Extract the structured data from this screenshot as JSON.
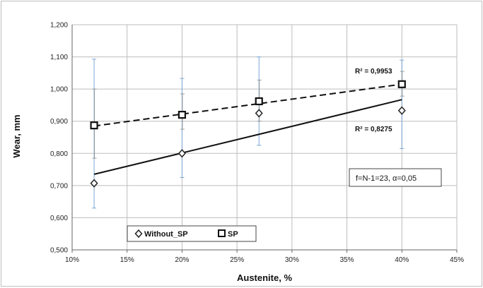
{
  "chart_data": {
    "type": "scatter",
    "xlabel": "Austenite, %",
    "ylabel": "Wear, mm",
    "xlim": [
      0.1,
      0.45
    ],
    "ylim": [
      0.5,
      1.2
    ],
    "x_ticks": [
      "10%",
      "15%",
      "20%",
      "25%",
      "30%",
      "35%",
      "40%",
      "45%"
    ],
    "x_tick_values": [
      0.1,
      0.15,
      0.2,
      0.25,
      0.3,
      0.35,
      0.4,
      0.45
    ],
    "y_ticks": [
      "0,500",
      "0,600",
      "0,700",
      "0,800",
      "0,900",
      "1,000",
      "1,100",
      "1,200"
    ],
    "y_tick_values": [
      0.5,
      0.6,
      0.7,
      0.8,
      0.9,
      1.0,
      1.1,
      1.2
    ],
    "grid": true,
    "legend_position": "bottom-left",
    "series": [
      {
        "name": "Without_SP",
        "marker": "diamond",
        "x": [
          0.12,
          0.2,
          0.27,
          0.4
        ],
        "y": [
          0.707,
          0.8,
          0.925,
          0.933
        ],
        "error_high": [
          1.093,
          1.033,
          1.1,
          1.09
        ],
        "error_low": [
          0.63,
          0.725,
          0.825,
          0.815
        ],
        "trendline": {
          "style": "solid",
          "x": [
            0.12,
            0.4
          ],
          "y": [
            0.735,
            0.967
          ]
        },
        "r2_label": "R² = 0,8275",
        "color": "#222222",
        "error_color": "#7aa6d6"
      },
      {
        "name": "SP",
        "marker": "square",
        "x": [
          0.12,
          0.2,
          0.27,
          0.4
        ],
        "y": [
          0.887,
          0.92,
          0.962,
          1.015
        ],
        "error_high": [
          1.0,
          0.985,
          1.028,
          1.055
        ],
        "error_low": [
          0.785,
          0.875,
          0.9,
          0.978
        ],
        "trendline": {
          "style": "dashed",
          "x": [
            0.12,
            0.4
          ],
          "y": [
            0.885,
            1.015
          ]
        },
        "r2_label": "R² = 0,9953",
        "color": "#111111",
        "error_color": "#9a9a9a"
      }
    ],
    "annotation": "f=N-1=23, α=0,05"
  }
}
